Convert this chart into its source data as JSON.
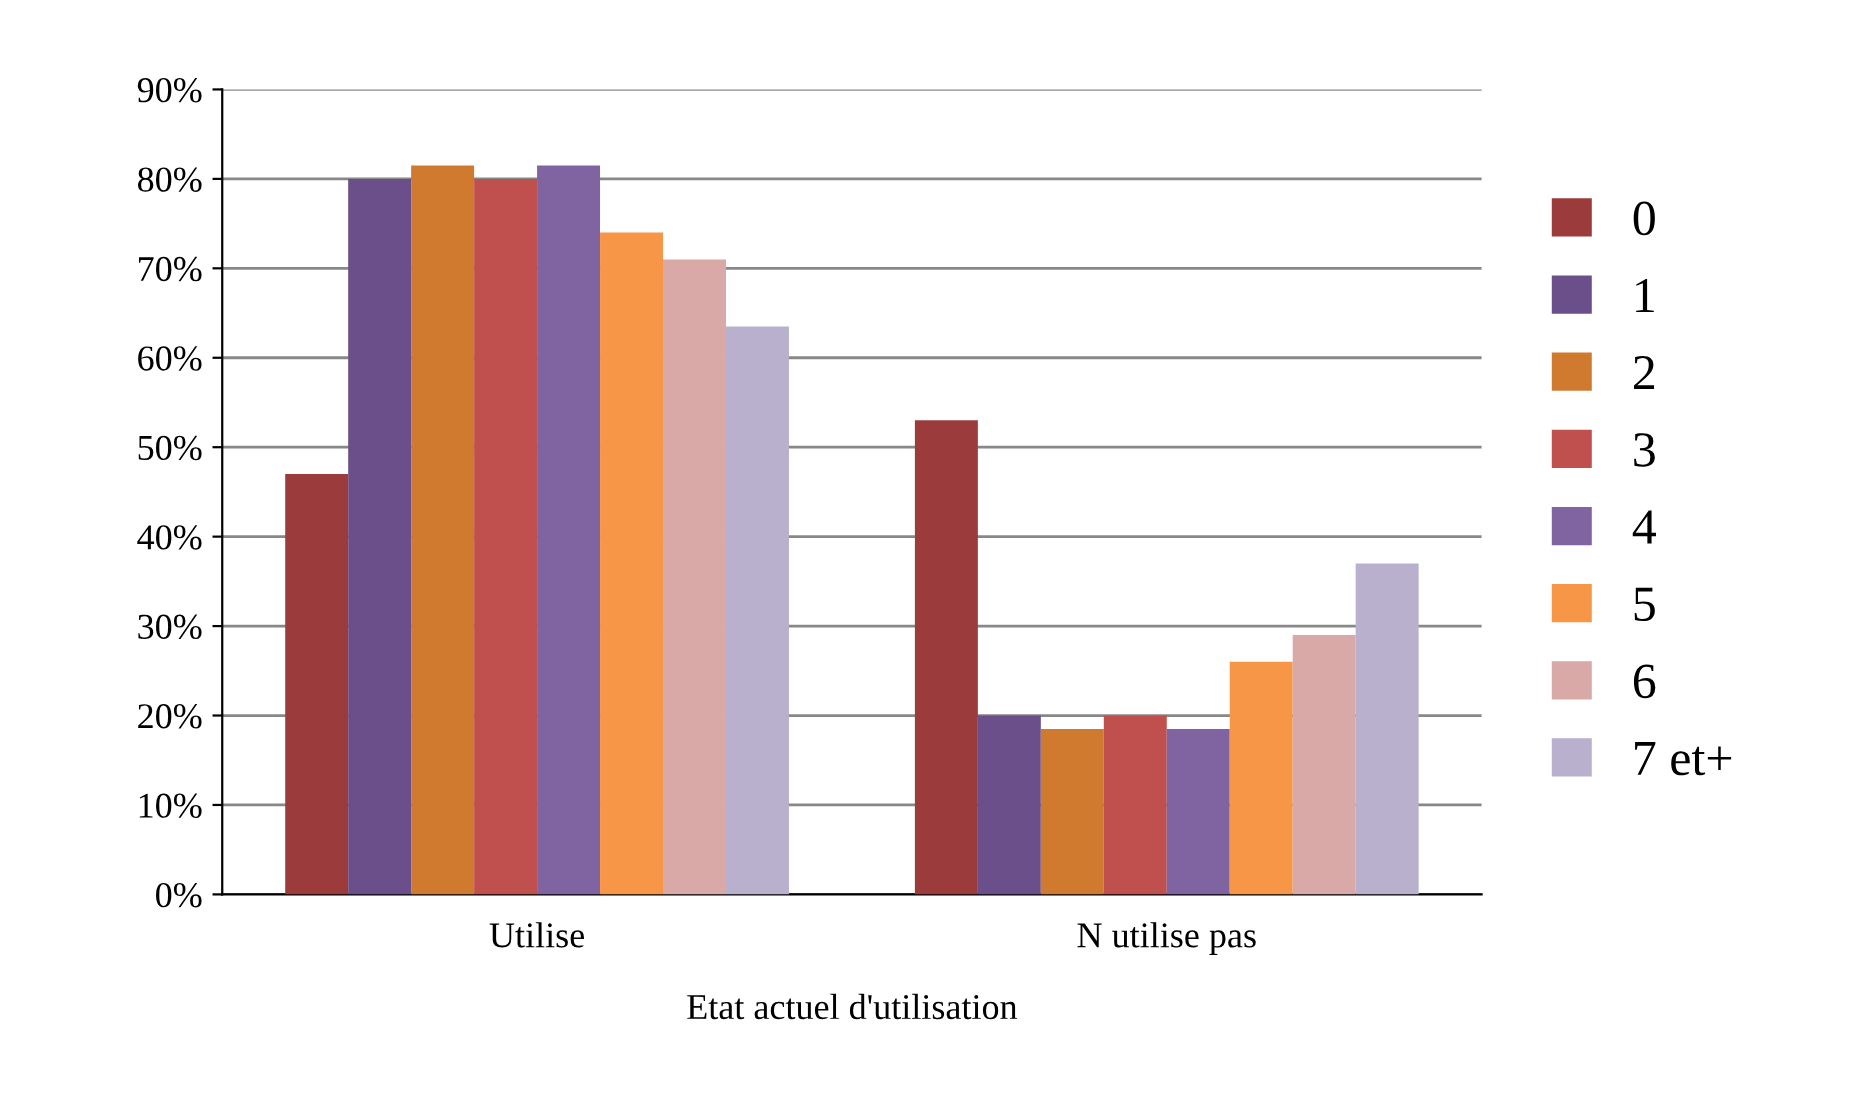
{
  "chart_data": {
    "type": "bar",
    "categories": [
      "Utilise",
      "N utilise pas"
    ],
    "xlabel": "Etat actuel d'utilisation",
    "series": [
      {
        "name": "0",
        "color": "#9b3b3b",
        "values": [
          47,
          53
        ]
      },
      {
        "name": "1",
        "color": "#6a4f8a",
        "values": [
          80,
          20
        ]
      },
      {
        "name": "2",
        "color": "#d07a30",
        "values": [
          81.5,
          18.5
        ]
      },
      {
        "name": "3",
        "color": "#c0504d",
        "values": [
          80,
          20
        ]
      },
      {
        "name": "4",
        "color": "#8064a2",
        "values": [
          81.5,
          18.5
        ]
      },
      {
        "name": "5",
        "color": "#f79646",
        "values": [
          74,
          26
        ]
      },
      {
        "name": "6",
        "color": "#d9a9a7",
        "values": [
          71,
          29
        ]
      },
      {
        "name": "7 et+",
        "color": "#b8b0cc",
        "values": [
          63.5,
          37
        ]
      }
    ],
    "ylim": [
      0,
      90
    ],
    "yticks": [
      {
        "value": 0,
        "label": "0%"
      },
      {
        "value": 10,
        "label": "10%"
      },
      {
        "value": 20,
        "label": "20%"
      },
      {
        "value": 30,
        "label": "30%"
      },
      {
        "value": 40,
        "label": "40%"
      },
      {
        "value": 50,
        "label": "50%"
      },
      {
        "value": 60,
        "label": "60%"
      },
      {
        "value": 70,
        "label": "70%"
      },
      {
        "value": 80,
        "label": "80%"
      },
      {
        "value": 90,
        "label": "90%"
      }
    ],
    "grid": "y",
    "legend": "right"
  }
}
